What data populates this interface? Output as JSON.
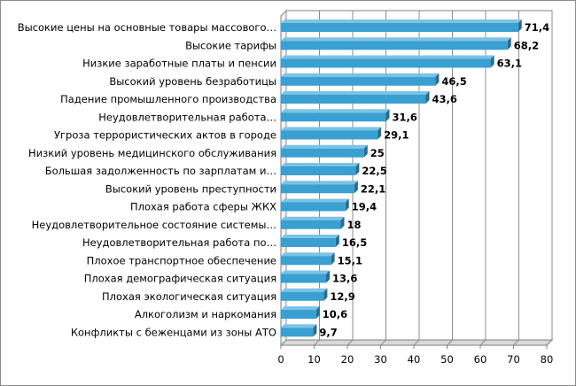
{
  "chart_data": {
    "type": "bar",
    "orientation": "horizontal",
    "style": "3d",
    "bar_color": "#3a9fd1",
    "grid": true,
    "xlim": [
      0,
      80
    ],
    "xticks": [
      0,
      10,
      20,
      30,
      40,
      50,
      60,
      70,
      80
    ],
    "categories": [
      "Высокие цены на основные товары массового…",
      "Высокие тарифы",
      "Низкие заработные платы и пенсии",
      "Высокий уровень безработицы",
      "Падение промышленного производства",
      "Неудовлетворительная работа…",
      "Угроза террористических актов в городе",
      "Низкий уровень медицинского обслуживания",
      "Большая задолженность по зарплатам и…",
      "Высокий уровень преступности",
      "Плохая работа сферы ЖКХ",
      "Неудовлетворительное состояние системы…",
      "Неудовлетворительная работа по…",
      "Плохое транспортное обеспечение",
      "Плохая демографическая ситуация",
      "Плохая экологическая ситуация",
      "Алкоголизм и наркомания",
      "Конфликты с беженцами из зоны АТО"
    ],
    "values": [
      71.4,
      68.2,
      63.1,
      46.5,
      43.6,
      31.6,
      29.1,
      25,
      22.5,
      22.1,
      19.4,
      18,
      16.5,
      15.1,
      13.6,
      12.9,
      10.6,
      9.7
    ],
    "value_labels": [
      "71,4",
      "68,2",
      "63,1",
      "46,5",
      "43,6",
      "31,6",
      "29,1",
      "25",
      "22,5",
      "22,1",
      "19,4",
      "18",
      "16,5",
      "15,1",
      "13,6",
      "12,9",
      "10,6",
      "9,7"
    ]
  }
}
